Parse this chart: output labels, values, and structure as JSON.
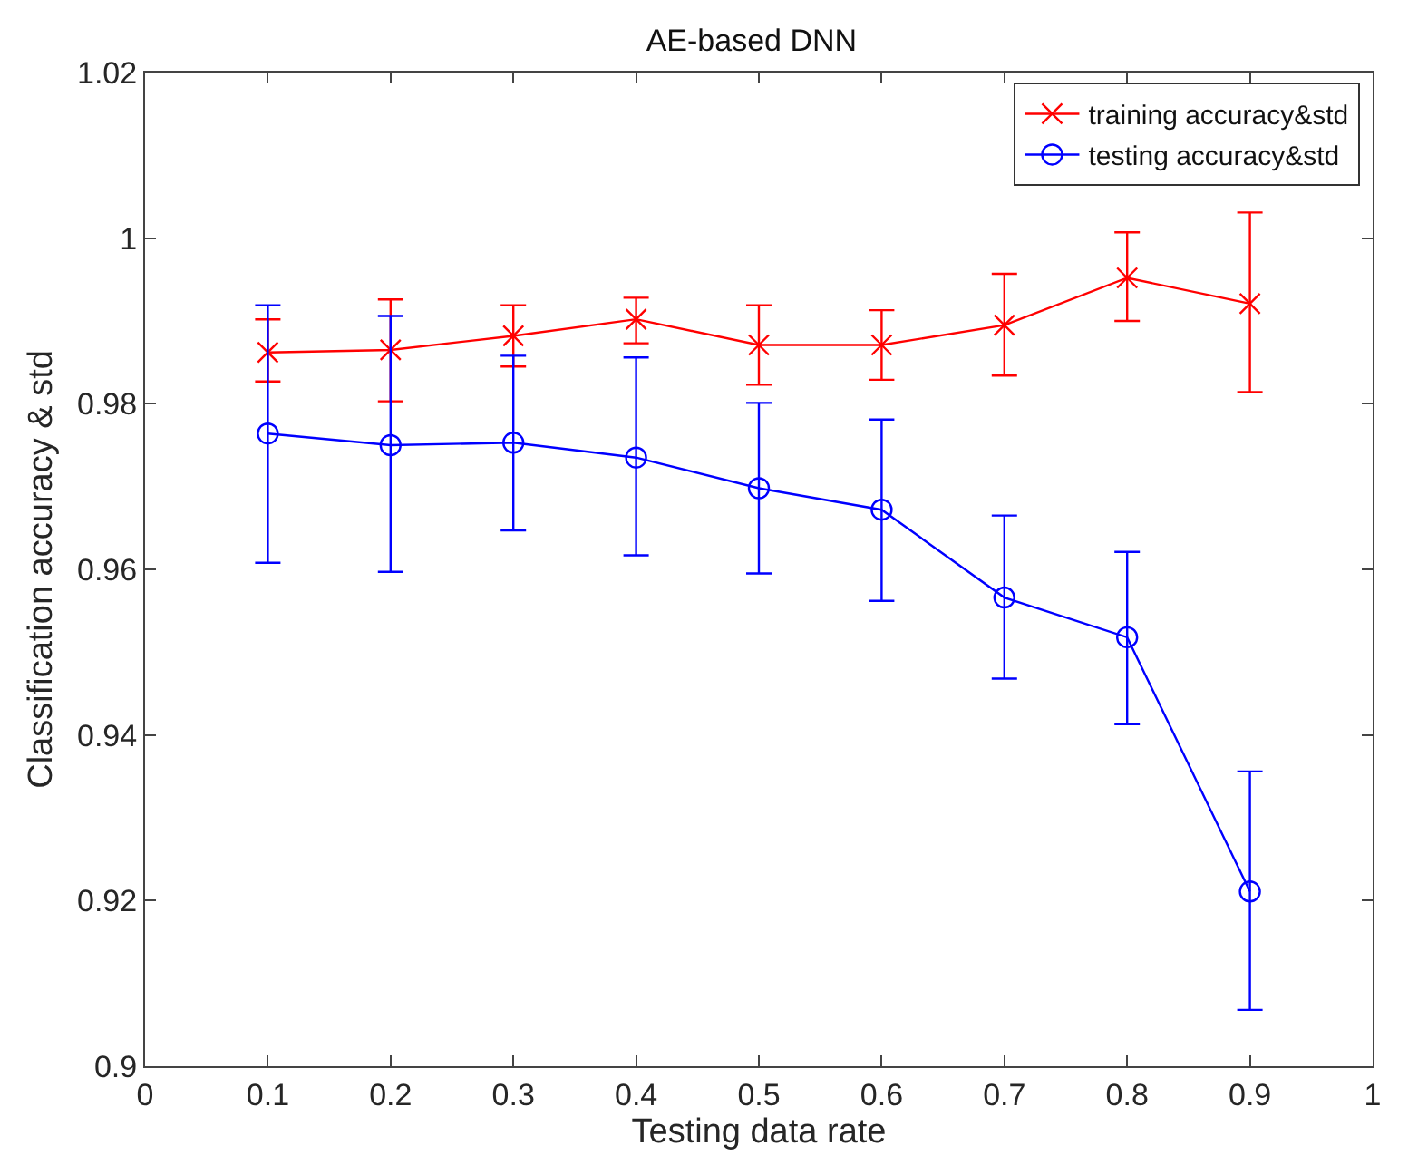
{
  "chart_data": {
    "type": "line",
    "title": "AE-based DNN",
    "xlabel": "Testing data rate",
    "ylabel": "Classification accuracy & std",
    "x": [
      0.1,
      0.2,
      0.3,
      0.4,
      0.5,
      0.6,
      0.7,
      0.8,
      0.9
    ],
    "series": [
      {
        "name": "training accuracy&std",
        "color": "#ff0000",
        "marker": "cross",
        "values": [
          0.9862,
          0.9865,
          0.9882,
          0.9902,
          0.9871,
          0.9871,
          0.9895,
          0.9952,
          0.9921
        ],
        "errors": [
          [
            0.9827,
            0.9902
          ],
          [
            0.9803,
            0.9926
          ],
          [
            0.9845,
            0.9919
          ],
          [
            0.9873,
            0.9928
          ],
          [
            0.9823,
            0.9919
          ],
          [
            0.9829,
            0.9913
          ],
          [
            0.9834,
            0.9957
          ],
          [
            0.99,
            1.0007
          ],
          [
            0.9814,
            1.0031
          ]
        ]
      },
      {
        "name": "testing accuracy&std",
        "color": "#0000ff",
        "marker": "circle",
        "values": [
          0.9764,
          0.975,
          0.9753,
          0.9735,
          0.9698,
          0.9672,
          0.9566,
          0.9518,
          0.9211
        ],
        "errors": [
          [
            0.9608,
            0.9919
          ],
          [
            0.9597,
            0.9906
          ],
          [
            0.9647,
            0.9858
          ],
          [
            0.9617,
            0.9856
          ],
          [
            0.9595,
            0.9801
          ],
          [
            0.9562,
            0.9781
          ],
          [
            0.9468,
            0.9665
          ],
          [
            0.9413,
            0.9621
          ],
          [
            0.9068,
            0.9356
          ]
        ]
      }
    ],
    "xlim": [
      0,
      1
    ],
    "xticks": [
      0,
      0.1,
      0.2,
      0.3,
      0.4,
      0.5,
      0.6,
      0.7,
      0.8,
      0.9,
      1
    ],
    "ylim": [
      0.9,
      1.02
    ],
    "yticks": [
      0.9,
      0.92,
      0.94,
      0.96,
      0.98,
      1,
      1.02
    ],
    "legend": "top right"
  }
}
